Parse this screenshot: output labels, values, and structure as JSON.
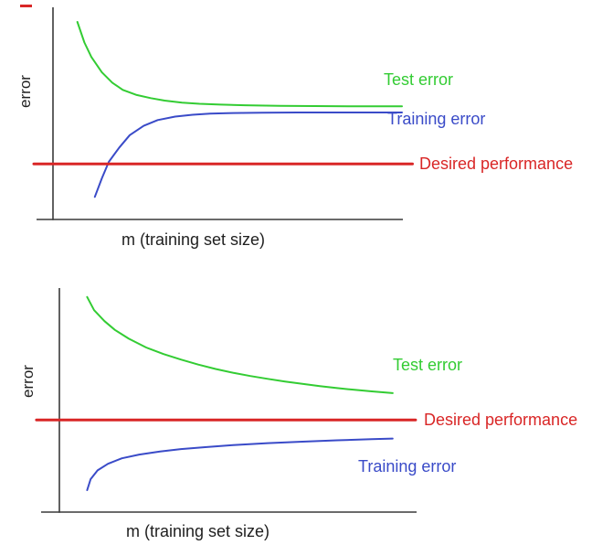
{
  "figure": {
    "background": "#ffffff",
    "axis_color": "#3a3a3a"
  },
  "chart_data": [
    {
      "type": "line",
      "title": "",
      "xlabel": "m (training set size)",
      "ylabel": "error",
      "xlim": [
        0,
        10
      ],
      "ylim": [
        0,
        1
      ],
      "grid": false,
      "legend_position": "text labels right of curves",
      "series": [
        {
          "name": "Test error",
          "color": "#33cc33",
          "width": 2,
          "points": [
            [
              0.7,
              0.96
            ],
            [
              0.9,
              0.86
            ],
            [
              1.1,
              0.79
            ],
            [
              1.4,
              0.715
            ],
            [
              1.7,
              0.665
            ],
            [
              2.0,
              0.63
            ],
            [
              2.4,
              0.605
            ],
            [
              2.8,
              0.59
            ],
            [
              3.2,
              0.578
            ],
            [
              3.7,
              0.568
            ],
            [
              4.2,
              0.562
            ],
            [
              4.8,
              0.558
            ],
            [
              5.5,
              0.555
            ],
            [
              6.5,
              0.552
            ],
            [
              7.5,
              0.551
            ],
            [
              8.5,
              0.55
            ],
            [
              10.0,
              0.55
            ]
          ]
        },
        {
          "name": "Training error",
          "color": "#3a4bc8",
          "width": 2,
          "points": [
            [
              1.2,
              0.11
            ],
            [
              1.4,
              0.2
            ],
            [
              1.6,
              0.28
            ],
            [
              1.9,
              0.35
            ],
            [
              2.2,
              0.41
            ],
            [
              2.6,
              0.455
            ],
            [
              3.0,
              0.483
            ],
            [
              3.5,
              0.5
            ],
            [
              4.0,
              0.509
            ],
            [
              4.5,
              0.514
            ],
            [
              5.0,
              0.517
            ],
            [
              6.0,
              0.519
            ],
            [
              7.0,
              0.52
            ],
            [
              8.5,
              0.52
            ],
            [
              10.0,
              0.52
            ]
          ]
        },
        {
          "name": "Desired performance",
          "color": "#d92626",
          "width": 3,
          "hline": true,
          "value": 0.27,
          "x_start": -0.55,
          "x_end": 10.3
        }
      ]
    },
    {
      "type": "line",
      "title": "",
      "xlabel": "m (training set size)",
      "ylabel": "error",
      "xlim": [
        0,
        10
      ],
      "ylim": [
        0,
        1
      ],
      "grid": false,
      "legend_position": "text labels right of curves",
      "series": [
        {
          "name": "Test error",
          "color": "#33cc33",
          "width": 2,
          "points": [
            [
              0.8,
              0.98
            ],
            [
              1.0,
              0.92
            ],
            [
              1.3,
              0.87
            ],
            [
              1.6,
              0.83
            ],
            [
              2.0,
              0.79
            ],
            [
              2.5,
              0.75
            ],
            [
              3.0,
              0.72
            ],
            [
              3.5,
              0.695
            ],
            [
              4.0,
              0.672
            ],
            [
              4.5,
              0.652
            ],
            [
              5.0,
              0.635
            ],
            [
              5.5,
              0.62
            ],
            [
              6.0,
              0.607
            ],
            [
              6.5,
              0.595
            ],
            [
              7.0,
              0.584
            ],
            [
              7.5,
              0.574
            ],
            [
              8.0,
              0.565
            ],
            [
              8.5,
              0.557
            ],
            [
              9.0,
              0.55
            ],
            [
              9.6,
              0.542
            ]
          ]
        },
        {
          "name": "Training error",
          "color": "#3a4bc8",
          "width": 2,
          "points": [
            [
              0.8,
              0.1
            ],
            [
              0.9,
              0.15
            ],
            [
              1.1,
              0.19
            ],
            [
              1.4,
              0.22
            ],
            [
              1.8,
              0.245
            ],
            [
              2.3,
              0.262
            ],
            [
              2.9,
              0.276
            ],
            [
              3.5,
              0.287
            ],
            [
              4.2,
              0.296
            ],
            [
              5.0,
              0.305
            ],
            [
              6.0,
              0.314
            ],
            [
              7.0,
              0.321
            ],
            [
              8.0,
              0.327
            ],
            [
              9.0,
              0.332
            ],
            [
              9.6,
              0.335
            ]
          ]
        },
        {
          "name": "Desired performance",
          "color": "#d92626",
          "width": 3,
          "hline": true,
          "value": 0.42,
          "x_start": -0.66,
          "x_end": 10.26
        }
      ]
    }
  ]
}
